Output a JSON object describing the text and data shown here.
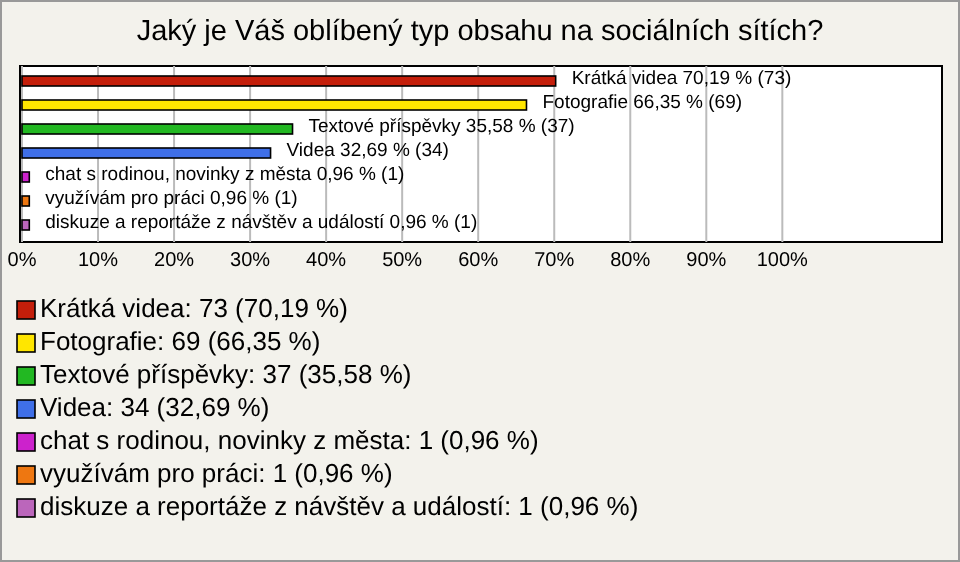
{
  "chart_data": {
    "type": "bar",
    "orientation": "horizontal",
    "title": "Jaký je Váš oblíbený typ obsahu na sociálních sítích?",
    "categories": [
      "Krátká videa",
      "Fotografie",
      "Textové příspěvky",
      "Videa",
      "chat s rodinou, novinky z města",
      "využívám pro práci",
      "diskuze a reportáže z návštěv a událostí"
    ],
    "values": [
      70.19,
      66.35,
      35.58,
      32.69,
      0.96,
      0.96,
      0.96
    ],
    "value_labels": [
      "70,19 % (73)",
      "66,35 % (69)",
      "35,58 % (37)",
      "32,69 % (34)",
      "0,96 % (1)",
      "0,96 % (1)",
      "0,96 % (1)"
    ],
    "colors": [
      "#c41e0a",
      "#ffe600",
      "#22b822",
      "#3f6fe8",
      "#cc22cc",
      "#ee7711",
      "#bb66bb"
    ],
    "xlim": [
      0,
      121
    ],
    "xticks": [
      {
        "value": 0,
        "label": "0%"
      },
      {
        "value": 10,
        "label": "10%"
      },
      {
        "value": 20,
        "label": "20%"
      },
      {
        "value": 30,
        "label": "30%"
      },
      {
        "value": 40,
        "label": "40%"
      },
      {
        "value": 50,
        "label": "50%"
      },
      {
        "value": 60,
        "label": "60%"
      },
      {
        "value": 70,
        "label": "70%"
      },
      {
        "value": 80,
        "label": "80%"
      },
      {
        "value": 90,
        "label": "90%"
      },
      {
        "value": 100,
        "label": "100%"
      }
    ],
    "grid": "x",
    "annotations": [
      "Krátká videa: 73 (70,19 %)",
      "Fotografie: 69 (66,35 %)",
      "Textové příspěvky: 37 (35,58 %)",
      "Videa: 34 (32,69 %)",
      "chat s rodinou, novinky z města: 1 (0,96 %)",
      "využívám pro práci: 1 (0,96 %)",
      "diskuze a reportáže z návštěv a událostí: 1 (0,96 %)"
    ]
  }
}
